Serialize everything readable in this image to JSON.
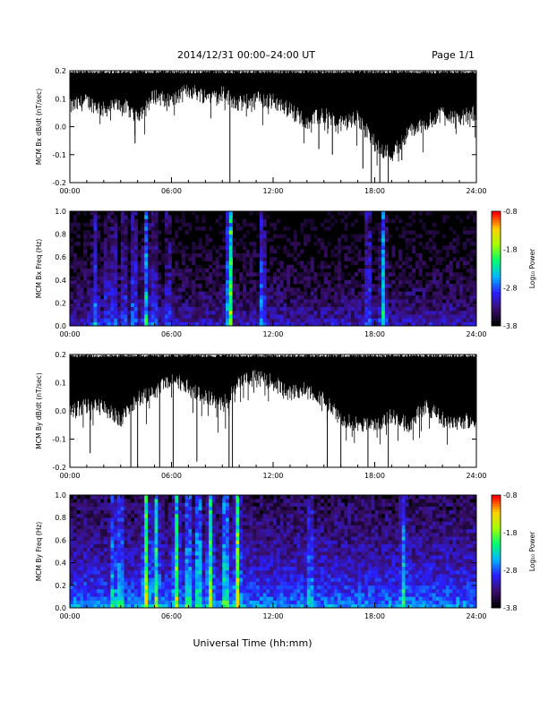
{
  "header": {
    "title": "2014/12/31   00:00–24:00 UT",
    "page": "Page 1/1"
  },
  "footer": {
    "xlabel": "Universal Time (hh:mm)"
  },
  "colors": {
    "trace": "#000000",
    "spectrogram_background": "#000000",
    "colormap": [
      "#000000",
      "#3a0f6e",
      "#2a1fff",
      "#00b6ff",
      "#00ff70",
      "#a8ff00",
      "#ffd000",
      "#ff0000"
    ]
  },
  "chart_data": [
    {
      "type": "line",
      "name": "bx-trace",
      "ylabel": "MCM Bx dB/dt (nT/sec)",
      "ylim": [
        -0.2,
        0.2
      ],
      "yticks": [
        "0.2",
        "0.1",
        "0.0",
        "-0.1",
        "-0.2"
      ],
      "xticks": [
        "00:00",
        "06:00",
        "12:00",
        "18:00",
        "24:00"
      ],
      "xlim_hours": [
        0,
        24
      ],
      "envelope_upper": 0.2,
      "envelope_lower_by_hour": {
        "hours": [
          0,
          1,
          2,
          3,
          4,
          5,
          6,
          7,
          8,
          9,
          10,
          11,
          12,
          13,
          14,
          15,
          16,
          17,
          18,
          19,
          20,
          21,
          22,
          23,
          24
        ],
        "values": [
          0.07,
          0.09,
          0.06,
          0.08,
          0.04,
          0.11,
          0.09,
          0.13,
          0.11,
          0.12,
          0.08,
          0.1,
          0.09,
          0.06,
          0.02,
          0.04,
          0.01,
          0.03,
          -0.06,
          -0.1,
          -0.02,
          0.01,
          0.05,
          0.03,
          0.05
        ]
      },
      "spikes": [
        {
          "t": 3.85,
          "v": -0.06
        },
        {
          "t": 9.45,
          "v": -0.2
        },
        {
          "t": 14.7,
          "v": -0.08
        },
        {
          "t": 15.5,
          "v": -0.1
        },
        {
          "t": 17.3,
          "v": -0.15
        },
        {
          "t": 17.8,
          "v": -0.2
        },
        {
          "t": 18.3,
          "v": -0.2
        },
        {
          "t": 18.8,
          "v": -0.2
        },
        {
          "t": 19.6,
          "v": -0.12
        }
      ]
    },
    {
      "type": "heatmap",
      "name": "bx-spectrogram",
      "ylabel": "MCM Bx Freq (Hz)",
      "ylim": [
        0,
        1.0
      ],
      "yticks": [
        "1.0",
        "0.8",
        "0.6",
        "0.4",
        "0.2",
        "0.0"
      ],
      "xticks": [
        "00:00",
        "06:00",
        "12:00",
        "18:00",
        "24:00"
      ],
      "xlim_hours": [
        0,
        24
      ],
      "colorbar": {
        "label": "Log₁₀ Power",
        "range": [
          -3.8,
          -0.8
        ],
        "ticks": [
          "-0.8",
          "-1.8",
          "-2.8",
          "-3.8"
        ]
      },
      "base_power_low_freq": -2.9,
      "base_power_high_freq": -3.8,
      "band_events": [
        {
          "t": 1.5,
          "power": -3.1
        },
        {
          "t": 2.2,
          "power": -3.2
        },
        {
          "t": 2.6,
          "power": -3.1
        },
        {
          "t": 3.2,
          "power": -3.1
        },
        {
          "t": 3.8,
          "power": -2.9
        },
        {
          "t": 4.5,
          "power": -2.7
        },
        {
          "t": 5.0,
          "power": -3.1
        },
        {
          "t": 5.8,
          "power": -3.2
        },
        {
          "t": 9.45,
          "power": -1.6
        },
        {
          "t": 11.35,
          "power": -2.7
        },
        {
          "t": 17.6,
          "power": -3.0
        },
        {
          "t": 18.5,
          "power": -2.6
        }
      ]
    },
    {
      "type": "line",
      "name": "by-trace",
      "ylabel": "MCM By dB/dt (nT/sec)",
      "ylim": [
        -0.2,
        0.2
      ],
      "yticks": [
        "0.2",
        "0.1",
        "0.0",
        "-0.1",
        "-0.2"
      ],
      "xticks": [
        "00:00",
        "06:00",
        "12:00",
        "18:00",
        "24:00"
      ],
      "xlim_hours": [
        0,
        24
      ],
      "envelope_upper": 0.2,
      "envelope_lower_by_hour": {
        "hours": [
          0,
          1,
          2,
          3,
          4,
          5,
          6,
          7,
          8,
          9,
          10,
          11,
          12,
          13,
          14,
          15,
          16,
          17,
          18,
          19,
          20,
          21,
          22,
          23,
          24
        ],
        "values": [
          0.0,
          0.02,
          0.01,
          -0.03,
          0.04,
          0.06,
          0.12,
          0.08,
          0.05,
          0.02,
          0.1,
          0.12,
          0.1,
          0.06,
          0.08,
          0.04,
          -0.03,
          -0.05,
          -0.05,
          -0.02,
          -0.05,
          0.02,
          -0.03,
          -0.04,
          -0.03
        ]
      },
      "spikes": [
        {
          "t": 1.2,
          "v": -0.15
        },
        {
          "t": 3.6,
          "v": -0.2
        },
        {
          "t": 4.0,
          "v": -0.2
        },
        {
          "t": 5.3,
          "v": -0.2
        },
        {
          "t": 6.1,
          "v": -0.2
        },
        {
          "t": 7.5,
          "v": -0.18
        },
        {
          "t": 9.4,
          "v": -0.2
        },
        {
          "t": 9.6,
          "v": -0.2
        },
        {
          "t": 15.2,
          "v": -0.2
        },
        {
          "t": 16.0,
          "v": -0.2
        },
        {
          "t": 17.6,
          "v": -0.2
        },
        {
          "t": 18.8,
          "v": -0.2
        }
      ]
    },
    {
      "type": "heatmap",
      "name": "by-spectrogram",
      "ylabel": "MCM By Freq (Hz)",
      "ylim": [
        0,
        1.0
      ],
      "yticks": [
        "1.0",
        "0.8",
        "0.6",
        "0.4",
        "0.2",
        "0.0"
      ],
      "xticks": [
        "00:00",
        "06:00",
        "12:00",
        "18:00",
        "24:00"
      ],
      "xlim_hours": [
        0,
        24
      ],
      "colorbar": {
        "label": "Log₁₀ Power",
        "range": [
          -3.8,
          -0.8
        ],
        "ticks": [
          "-0.8",
          "-1.8",
          "-2.8",
          "-3.8"
        ]
      },
      "base_power_low_freq": -2.3,
      "base_power_high_freq": -3.5,
      "band_events": [
        {
          "t": 2.55,
          "power": -2.8
        },
        {
          "t": 3.0,
          "power": -2.6
        },
        {
          "t": 4.5,
          "power": -2.0
        },
        {
          "t": 5.1,
          "power": -2.3
        },
        {
          "t": 6.3,
          "power": -2.2
        },
        {
          "t": 7.0,
          "power": -2.4
        },
        {
          "t": 7.6,
          "power": -2.3
        },
        {
          "t": 8.3,
          "power": -2.2
        },
        {
          "t": 9.2,
          "power": -2.1
        },
        {
          "t": 9.9,
          "power": -1.9
        },
        {
          "t": 14.2,
          "power": -2.9
        },
        {
          "t": 19.7,
          "power": -2.8
        }
      ]
    }
  ]
}
